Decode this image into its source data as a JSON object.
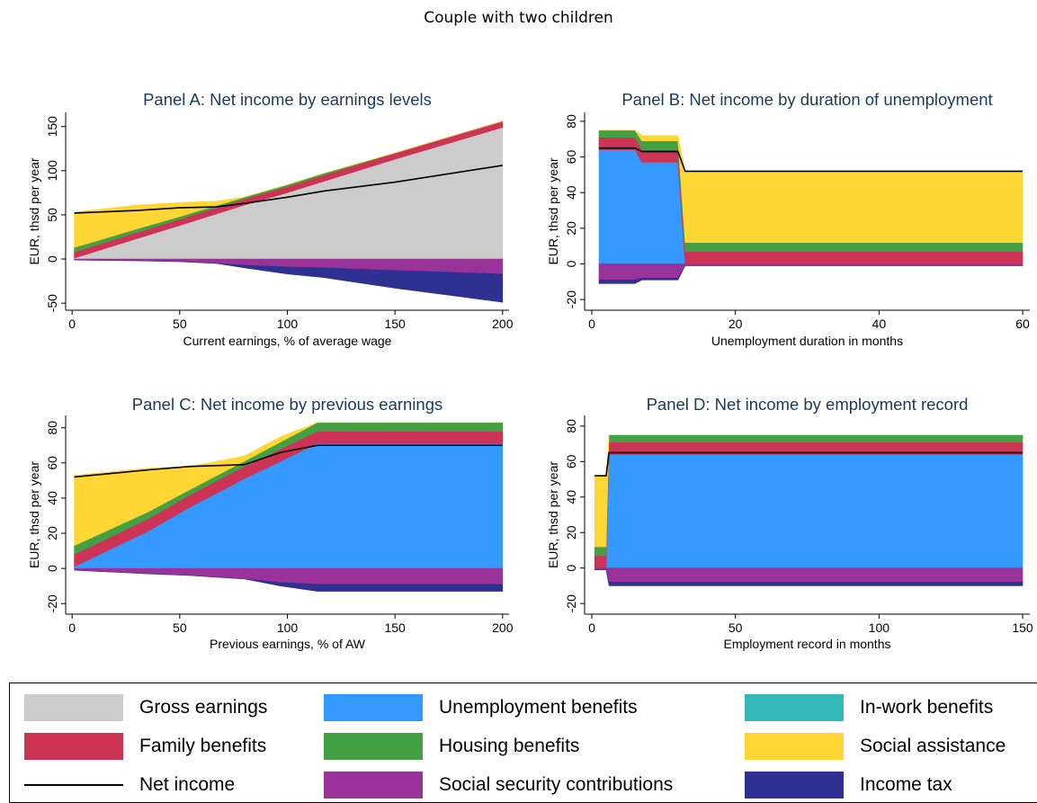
{
  "suptitle": "Couple with two children",
  "colors": {
    "gross": "#cccccc",
    "unemployment": "#3399ff",
    "inwork": "#33b8b8",
    "family": "#cc3355",
    "housing": "#44a044",
    "social": "#ffd633",
    "ssc": "#993399",
    "tax": "#2e3192",
    "net": "#000000"
  },
  "legend": [
    {
      "key": "gross",
      "label": "Gross earnings",
      "type": "area"
    },
    {
      "key": "unemployment",
      "label": "Unemployment benefits",
      "type": "area"
    },
    {
      "key": "inwork",
      "label": "In-work benefits",
      "type": "area"
    },
    {
      "key": "family",
      "label": "Family benefits",
      "type": "area"
    },
    {
      "key": "housing",
      "label": "Housing benefits",
      "type": "area"
    },
    {
      "key": "social",
      "label": "Social assistance",
      "type": "area"
    },
    {
      "key": "net",
      "label": "Net income",
      "type": "line"
    },
    {
      "key": "ssc",
      "label": "Social security contributions",
      "type": "area"
    },
    {
      "key": "tax",
      "label": "Income tax",
      "type": "area"
    }
  ],
  "chart_data": [
    {
      "type": "area",
      "title": "Panel A: Net income by earnings levels",
      "xlabel": "Current earnings, % of average wage",
      "ylabel": "EUR, thsd per year",
      "xlim": [
        -3,
        203
      ],
      "ylim": [
        -58,
        166
      ],
      "xticks": [
        0,
        50,
        100,
        150,
        200
      ],
      "yticks": [
        -50,
        0,
        50,
        100,
        150
      ],
      "x": [
        1,
        30,
        50,
        67,
        80,
        100,
        117,
        150,
        200
      ],
      "series": [
        {
          "key": "gross",
          "values": [
            1,
            23,
            38,
            51,
            61,
            75,
            88,
            113,
            149
          ]
        },
        {
          "key": "unemployment",
          "values": [
            0,
            0,
            0,
            0,
            0,
            0,
            0,
            0,
            0
          ]
        },
        {
          "key": "inwork",
          "values": [
            0,
            0,
            0,
            0,
            0,
            0,
            0,
            0,
            0
          ]
        },
        {
          "key": "family",
          "values": [
            7,
            7,
            7,
            7,
            7,
            7,
            7,
            7,
            7
          ]
        },
        {
          "key": "housing",
          "values": [
            5,
            4,
            3,
            2.5,
            2,
            2,
            2,
            0,
            0
          ]
        },
        {
          "key": "social",
          "values": [
            40,
            27,
            16,
            5,
            0,
            0,
            0,
            0,
            0
          ]
        },
        {
          "key": "ssc",
          "values": [
            -1,
            -2,
            -3,
            -5,
            -7,
            -9,
            -10,
            -13,
            -17
          ]
        },
        {
          "key": "tax",
          "values": [
            0,
            0,
            0,
            0,
            -3,
            -8,
            -11,
            -20,
            -32
          ]
        }
      ],
      "net": [
        52,
        55,
        58,
        59,
        63,
        70,
        77,
        87,
        106
      ]
    },
    {
      "type": "area",
      "title": "Panel B: Net income by duration of unemployment",
      "xlabel": "Unemployment duration in months",
      "ylabel": "EUR, thsd per year",
      "xlim": [
        -1,
        61
      ],
      "ylim": [
        -26,
        85
      ],
      "xticks": [
        0,
        20,
        40,
        60
      ],
      "yticks": [
        -20,
        0,
        20,
        40,
        60,
        80
      ],
      "x": [
        1,
        6,
        7,
        12,
        13,
        60
      ],
      "series": [
        {
          "key": "gross",
          "values": [
            0,
            0,
            0,
            0,
            0,
            0
          ]
        },
        {
          "key": "unemployment",
          "values": [
            64,
            64,
            57,
            57,
            0,
            0
          ]
        },
        {
          "key": "inwork",
          "values": [
            0,
            0,
            0,
            0,
            0,
            0
          ]
        },
        {
          "key": "family",
          "values": [
            7,
            7,
            7,
            7,
            7,
            7
          ]
        },
        {
          "key": "housing",
          "values": [
            4,
            4,
            5,
            5,
            5,
            5
          ]
        },
        {
          "key": "social",
          "values": [
            0,
            0,
            3,
            3,
            40,
            40
          ]
        },
        {
          "key": "ssc",
          "values": [
            -9,
            -9,
            -8,
            -8,
            -1,
            -1
          ]
        },
        {
          "key": "tax",
          "values": [
            -2,
            -2,
            -1,
            -1,
            0,
            0
          ]
        }
      ],
      "net": [
        65,
        65,
        63,
        63,
        52,
        52
      ]
    },
    {
      "type": "area",
      "title": "Panel C: Net income by previous earnings",
      "xlabel": "Previous earnings, % of AW",
      "ylabel": "EUR, thsd per year",
      "xlim": [
        -3,
        203
      ],
      "ylim": [
        -26,
        87
      ],
      "xticks": [
        0,
        50,
        100,
        150,
        200
      ],
      "yticks": [
        -20,
        0,
        20,
        40,
        60,
        80
      ],
      "x": [
        1,
        35,
        55,
        80,
        97,
        114,
        200
      ],
      "series": [
        {
          "key": "gross",
          "values": [
            0,
            0,
            0,
            0,
            0,
            0,
            0
          ]
        },
        {
          "key": "unemployment",
          "values": [
            1,
            21,
            35,
            51,
            61,
            71,
            71
          ]
        },
        {
          "key": "inwork",
          "values": [
            0,
            0,
            0,
            0,
            0,
            0,
            0
          ]
        },
        {
          "key": "family",
          "values": [
            7,
            7,
            7,
            7,
            7,
            7,
            7
          ]
        },
        {
          "key": "housing",
          "values": [
            5,
            4,
            3,
            3,
            4,
            5,
            5
          ]
        },
        {
          "key": "social",
          "values": [
            40,
            25,
            13,
            3,
            3,
            0,
            0
          ]
        },
        {
          "key": "ssc",
          "values": [
            -1,
            -3,
            -4,
            -6,
            -8,
            -9,
            -9
          ]
        },
        {
          "key": "tax",
          "values": [
            0,
            0,
            0,
            0,
            -2,
            -4,
            -4
          ]
        }
      ],
      "net": [
        52,
        56,
        58,
        59,
        66,
        70,
        70
      ]
    },
    {
      "type": "area",
      "title": "Panel D: Net income by employment record",
      "xlabel": "Employment record in months",
      "ylabel": "EUR, thsd per year",
      "xlim": [
        -2.5,
        152.5
      ],
      "ylim": [
        -26,
        86
      ],
      "xticks": [
        0,
        50,
        100,
        150
      ],
      "yticks": [
        -20,
        0,
        20,
        40,
        60,
        80
      ],
      "x": [
        1,
        5,
        6,
        150
      ],
      "series": [
        {
          "key": "gross",
          "values": [
            0,
            0,
            0,
            0
          ]
        },
        {
          "key": "unemployment",
          "values": [
            0,
            0,
            64,
            64
          ]
        },
        {
          "key": "inwork",
          "values": [
            0,
            0,
            0,
            0
          ]
        },
        {
          "key": "family",
          "values": [
            7,
            7,
            7,
            7
          ]
        },
        {
          "key": "housing",
          "values": [
            5,
            5,
            4,
            4
          ]
        },
        {
          "key": "social",
          "values": [
            40,
            40,
            0,
            0
          ]
        },
        {
          "key": "ssc",
          "values": [
            -1,
            -1,
            -8,
            -8
          ]
        },
        {
          "key": "tax",
          "values": [
            0,
            0,
            -2,
            -2
          ]
        }
      ],
      "net": [
        52,
        52,
        65,
        65
      ]
    }
  ]
}
